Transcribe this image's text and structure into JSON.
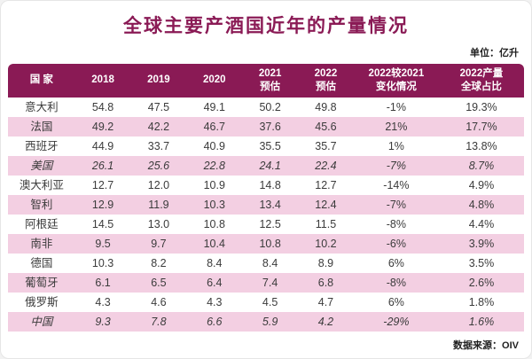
{
  "title": "全球主要产酒国近年的产量情况",
  "unit_label": "单位：亿升",
  "source_label": "数据来源：OIV",
  "colors": {
    "accent": "#8A1A55",
    "row_alt": "#F3CFE2",
    "header_text": "#FFFFFF"
  },
  "chart_data": {
    "type": "table",
    "title": "全球主要产酒国近年的产量情况",
    "unit": "亿升",
    "source": "OIV",
    "columns": [
      "国家",
      "2018",
      "2019",
      "2020",
      "2021预估",
      "2022预估",
      "2022较2021变化情况",
      "2022产量全球占比"
    ],
    "header_display": [
      [
        "国  家"
      ],
      [
        "2018"
      ],
      [
        "2019"
      ],
      [
        "2020"
      ],
      [
        "2021",
        "预估"
      ],
      [
        "2022",
        "预估"
      ],
      [
        "2022较2021",
        "变化情况"
      ],
      [
        "2022产量",
        "全球占比"
      ]
    ],
    "rows": [
      [
        "意大利",
        "54.8",
        "47.5",
        "49.1",
        "50.2",
        "49.8",
        "-1%",
        "19.3%"
      ],
      [
        "法国",
        "49.2",
        "42.2",
        "46.7",
        "37.6",
        "45.6",
        "21%",
        "17.7%"
      ],
      [
        "西班牙",
        "44.9",
        "33.7",
        "40.9",
        "35.5",
        "35.7",
        "1%",
        "13.8%"
      ],
      [
        "美国",
        "26.1",
        "25.6",
        "22.8",
        "24.1",
        "22.4",
        "-7%",
        "8.7%"
      ],
      [
        "澳大利亚",
        "12.7",
        "12.0",
        "10.9",
        "14.8",
        "12.7",
        "-14%",
        "4.9%"
      ],
      [
        "智利",
        "12.9",
        "11.9",
        "10.3",
        "13.4",
        "12.4",
        "-7%",
        "4.8%"
      ],
      [
        "阿根廷",
        "14.5",
        "13.0",
        "10.8",
        "12.5",
        "11.5",
        "-8%",
        "4.4%"
      ],
      [
        "南非",
        "9.5",
        "9.7",
        "10.4",
        "10.8",
        "10.2",
        "-6%",
        "3.9%"
      ],
      [
        "德国",
        "10.3",
        "8.2",
        "8.4",
        "8.4",
        "8.9",
        "6%",
        "3.5%"
      ],
      [
        "葡萄牙",
        "6.1",
        "6.5",
        "6.4",
        "7.4",
        "6.8",
        "-8%",
        "2.6%"
      ],
      [
        "俄罗斯",
        "4.3",
        "4.6",
        "4.3",
        "4.5",
        "4.7",
        "6%",
        "1.8%"
      ],
      [
        "中国",
        "9.3",
        "7.8",
        "6.6",
        "5.9",
        "4.2",
        "-29%",
        "1.6%"
      ]
    ],
    "italic_rows": [
      3,
      11
    ]
  }
}
